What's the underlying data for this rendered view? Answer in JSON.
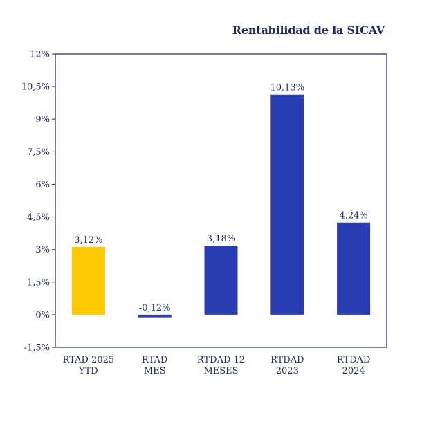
{
  "chart_data": {
    "type": "bar",
    "title": "Rentabilidad de la SICAV",
    "xlabel": "",
    "ylabel": "",
    "ylim": [
      -1.5,
      12
    ],
    "yticks": [
      -1.5,
      0,
      1.5,
      3,
      4.5,
      6,
      7.5,
      9,
      10.5,
      12
    ],
    "ytick_labels": [
      "-1,5%",
      "0%",
      "1,5%",
      "3%",
      "4,5%",
      "6%",
      "7,5%",
      "9%",
      "10,5%",
      "12%"
    ],
    "grid": false,
    "categories": [
      [
        "RTAD 2025",
        "YTD"
      ],
      [
        "RTAD",
        "MES"
      ],
      [
        "RTDAD 12",
        "MESES"
      ],
      [
        "RTDAD",
        "2023"
      ],
      [
        "RTDAD",
        "2024"
      ]
    ],
    "values": [
      3.12,
      -0.12,
      3.18,
      10.13,
      4.24
    ],
    "value_labels": [
      "3,12%",
      "-0,12%",
      "3,18%",
      "10,13%",
      "4,24%"
    ],
    "colors": [
      "#fdc900",
      "#2a3db0",
      "#2a3db0",
      "#2a3db0",
      "#2a3db0"
    ],
    "frame_color": "#1f2a5a"
  }
}
